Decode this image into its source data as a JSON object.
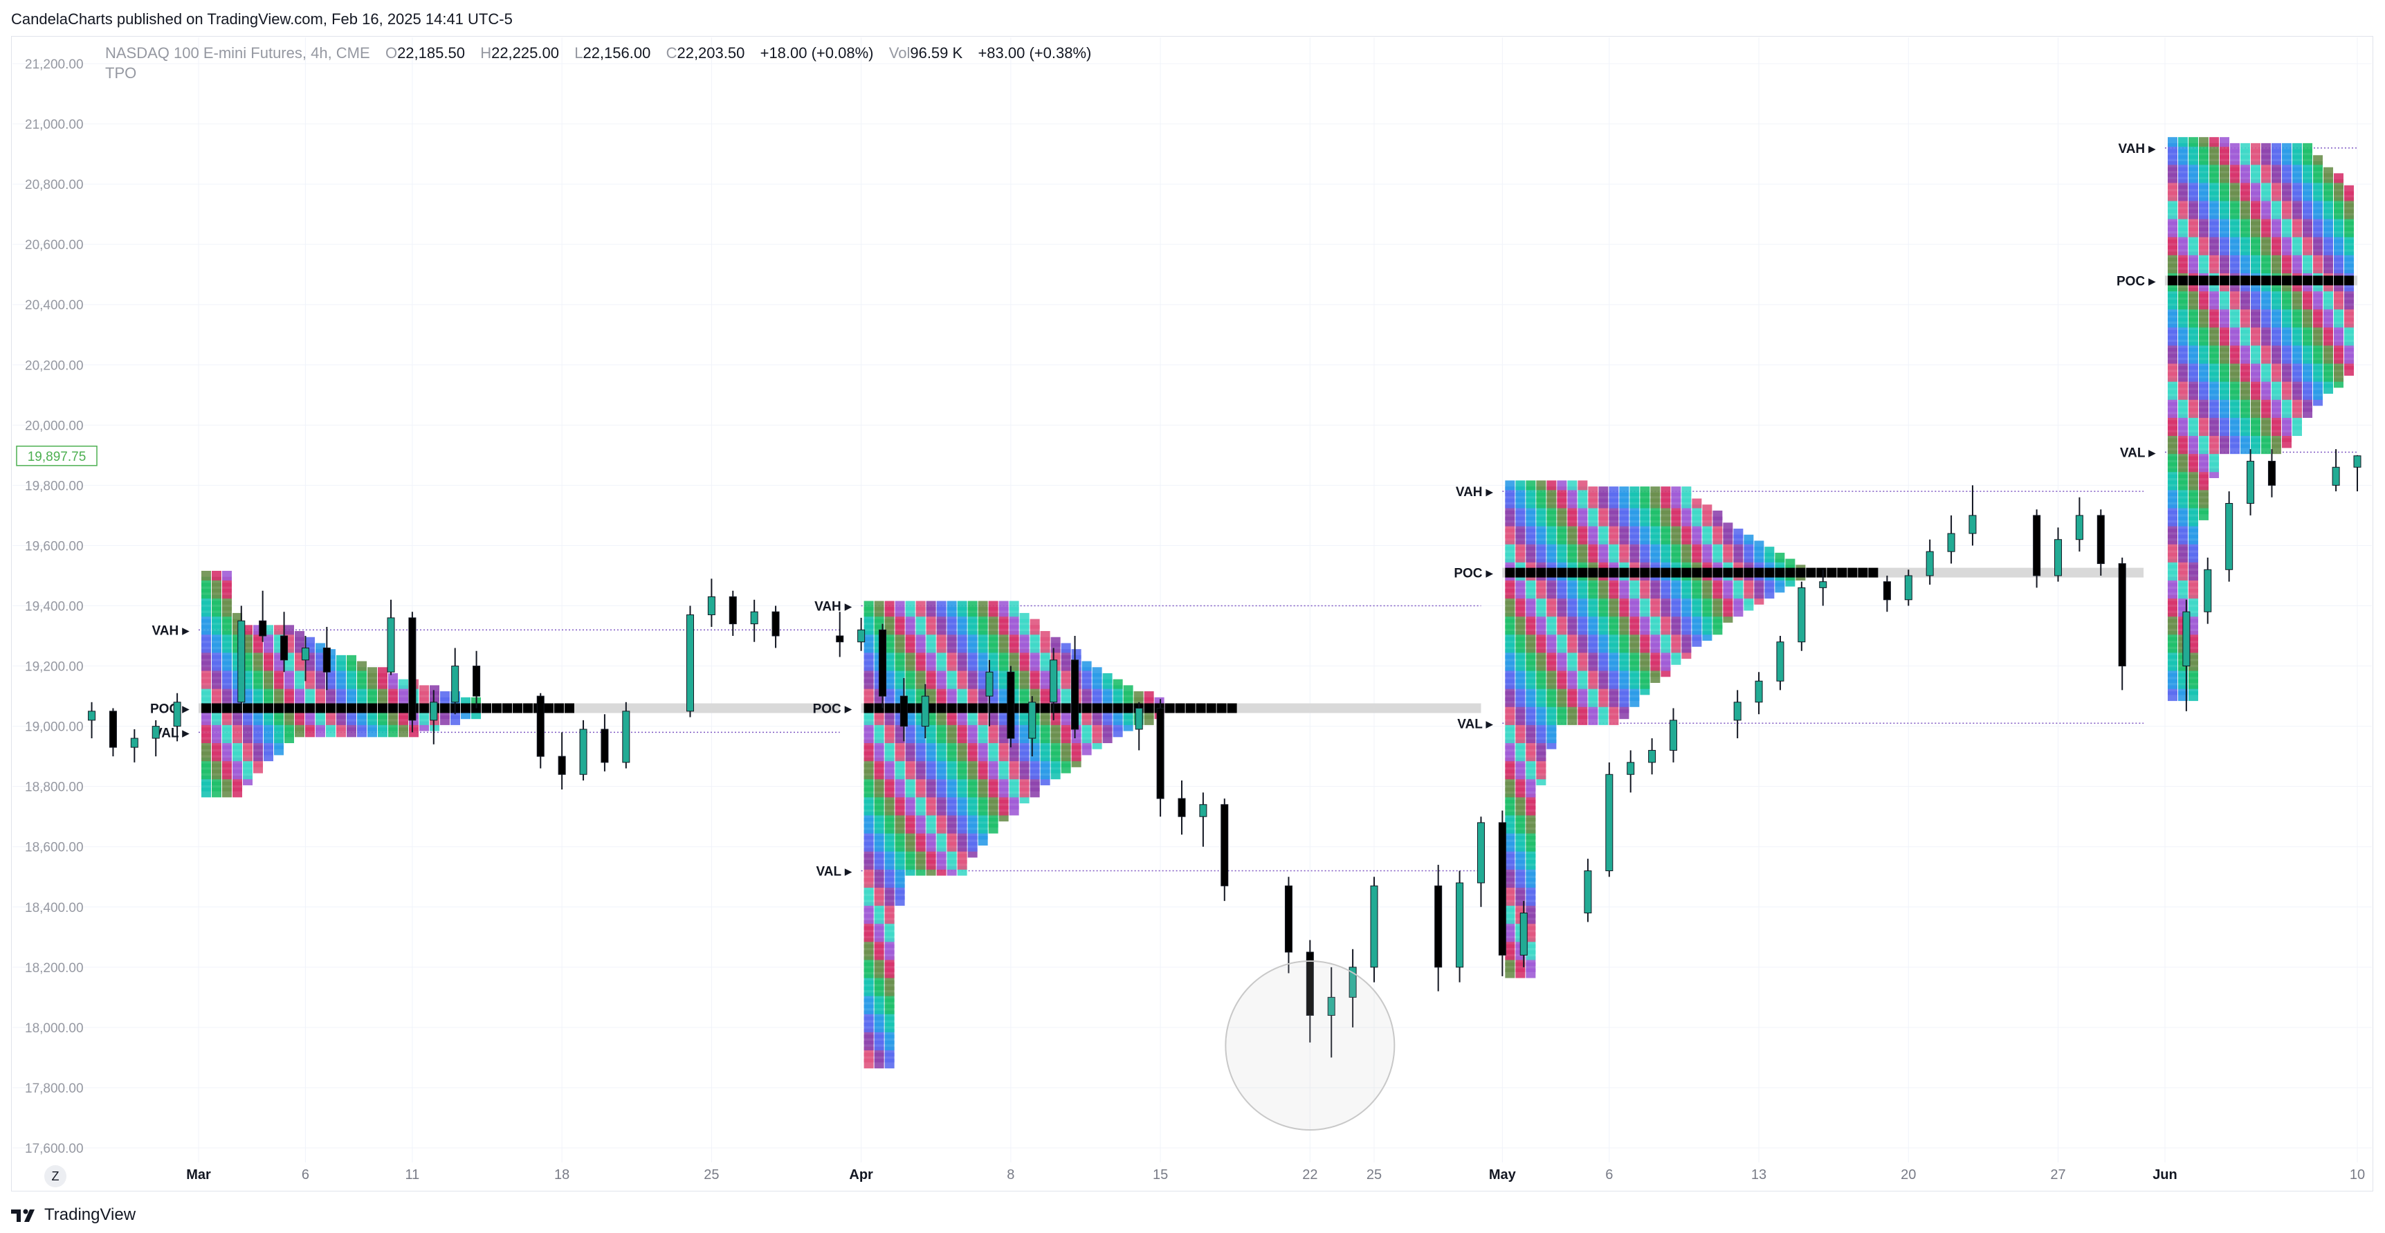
{
  "header": {
    "published": "CandelaCharts published on TradingView.com, Feb 16, 2025 14:41 UTC-5"
  },
  "legend": {
    "symbol": "NASDAQ 100 E-mini Futures, 4h, CME",
    "o_label": "O",
    "o_value": "22,185.50",
    "h_label": "H",
    "h_value": "22,225.00",
    "l_label": "L",
    "l_value": "22,156.00",
    "c_label": "C",
    "c_value": "22,203.50",
    "change": "+18.00 (+0.08%)",
    "vol_label": "Vol",
    "vol_value": "96.59 K",
    "vol_change": "+83.00 (+0.38%)",
    "indicator": "TPO"
  },
  "footer": {
    "brand": "TradingView",
    "zoom_button": "Z"
  },
  "colors": {
    "up": "#22ab94",
    "down": "#000000",
    "grid": "#f0f3fa",
    "poc_band": "#d9d9d9",
    "pink_band": "#f8d7f5",
    "price_tag": "#4caf50",
    "level_line": "#7e57c2"
  },
  "chart_data": {
    "type": "candlestick",
    "title": "",
    "y_ticks": [
      "21,200.00",
      "21,000.00",
      "20,800.00",
      "20,600.00",
      "20,400.00",
      "20,200.00",
      "20,000.00",
      "19,800.00",
      "19,600.00",
      "19,400.00",
      "19,200.00",
      "19,000.00",
      "18,800.00",
      "18,600.00",
      "18,400.00",
      "18,200.00",
      "18,000.00",
      "17,800.00",
      "17,600.00"
    ],
    "y_tick_values": [
      21200,
      21000,
      20800,
      20600,
      20400,
      20200,
      20000,
      19800,
      19600,
      19400,
      19200,
      19000,
      18800,
      18600,
      18400,
      18200,
      18000,
      17800,
      17600
    ],
    "ylim": [
      17550,
      21270
    ],
    "price_tag": "19,897.75",
    "x_ticks": [
      "Mar",
      "6",
      "11",
      "18",
      "25",
      "Apr",
      "8",
      "15",
      "22",
      "25",
      "May",
      "6",
      "13",
      "20",
      "27",
      "Jun",
      "10"
    ],
    "x_tick_dates": [
      "2025-03-01",
      "2025-03-06",
      "2025-03-11",
      "2025-03-18",
      "2025-03-25",
      "2025-04-01",
      "2025-04-08",
      "2025-04-15",
      "2025-04-22",
      "2025-04-25",
      "2025-05-01",
      "2025-05-06",
      "2025-05-13",
      "2025-05-20",
      "2025-05-27",
      "2025-06-01",
      "2025-06-10"
    ],
    "series": [
      {
        "values": [
          [
            "2025-02-24",
            19020,
            19080,
            18960,
            19050
          ],
          [
            "2025-02-25",
            19050,
            19060,
            18900,
            18930
          ],
          [
            "2025-02-26",
            18930,
            18990,
            18880,
            18960
          ],
          [
            "2025-02-27",
            18960,
            19020,
            18900,
            19000
          ],
          [
            "2025-02-28",
            19000,
            19110,
            18950,
            19080
          ],
          [
            "2025-03-03",
            19080,
            19400,
            19050,
            19350
          ],
          [
            "2025-03-04",
            19350,
            19450,
            19280,
            19300
          ],
          [
            "2025-03-05",
            19300,
            19380,
            19180,
            19220
          ],
          [
            "2025-03-06",
            19220,
            19300,
            19150,
            19260
          ],
          [
            "2025-03-07",
            19260,
            19330,
            19120,
            19180
          ],
          [
            "2025-03-10",
            19180,
            19420,
            19170,
            19360
          ],
          [
            "2025-03-11",
            19360,
            19380,
            18980,
            19020
          ],
          [
            "2025-03-12",
            19020,
            19120,
            18940,
            19080
          ],
          [
            "2025-03-13",
            19080,
            19260,
            19040,
            19200
          ],
          [
            "2025-03-14",
            19200,
            19250,
            19060,
            19100
          ],
          [
            "2025-03-17",
            19100,
            19110,
            18860,
            18900
          ],
          [
            "2025-03-18",
            18900,
            18980,
            18790,
            18840
          ],
          [
            "2025-03-19",
            18840,
            19020,
            18820,
            18990
          ],
          [
            "2025-03-20",
            18990,
            19040,
            18850,
            18880
          ],
          [
            "2025-03-21",
            18880,
            19080,
            18860,
            19050
          ],
          [
            "2025-03-24",
            19050,
            19400,
            19030,
            19370
          ],
          [
            "2025-03-25",
            19370,
            19490,
            19330,
            19430
          ],
          [
            "2025-03-26",
            19430,
            19450,
            19300,
            19340
          ],
          [
            "2025-03-27",
            19340,
            19420,
            19280,
            19380
          ],
          [
            "2025-03-28",
            19380,
            19400,
            19260,
            19300
          ],
          [
            "2025-03-31",
            19300,
            19380,
            19230,
            19280
          ],
          [
            "2025-04-01",
            19280,
            19360,
            19250,
            19320
          ],
          [
            "2025-04-02",
            19320,
            19340,
            19060,
            19100
          ],
          [
            "2025-04-03",
            19100,
            19160,
            18950,
            19000
          ],
          [
            "2025-04-04",
            19000,
            19140,
            18960,
            19100
          ],
          [
            "2025-04-07",
            19100,
            19220,
            19000,
            19180
          ],
          [
            "2025-04-08",
            19180,
            19200,
            18930,
            18960
          ],
          [
            "2025-04-09",
            18960,
            19100,
            18900,
            19080
          ],
          [
            "2025-04-10",
            19080,
            19260,
            19020,
            19220
          ],
          [
            "2025-04-11",
            19220,
            19300,
            18960,
            18990
          ],
          [
            "2025-04-14",
            18990,
            19080,
            18920,
            19060
          ],
          [
            "2025-04-15",
            19060,
            19090,
            18700,
            18760
          ],
          [
            "2025-04-16",
            18760,
            18820,
            18640,
            18700
          ],
          [
            "2025-04-17",
            18700,
            18780,
            18600,
            18740
          ],
          [
            "2025-04-18",
            18740,
            18760,
            18420,
            18470
          ],
          [
            "2025-04-21",
            18470,
            18500,
            18180,
            18250
          ],
          [
            "2025-04-22",
            18250,
            18290,
            17950,
            18040
          ],
          [
            "2025-04-23",
            18040,
            18200,
            17900,
            18100
          ],
          [
            "2025-04-24",
            18100,
            18260,
            18000,
            18200
          ],
          [
            "2025-04-25",
            18200,
            18500,
            18150,
            18470
          ],
          [
            "2025-04-28",
            18470,
            18540,
            18120,
            18200
          ],
          [
            "2025-04-29",
            18200,
            18520,
            18150,
            18480
          ],
          [
            "2025-04-30",
            18480,
            18700,
            18400,
            18680
          ],
          [
            "2025-05-01",
            18680,
            18720,
            18170,
            18240
          ],
          [
            "2025-05-02",
            18240,
            18420,
            18200,
            18380
          ],
          [
            "2025-05-05",
            18380,
            18560,
            18350,
            18520
          ],
          [
            "2025-05-06",
            18520,
            18880,
            18500,
            18840
          ],
          [
            "2025-05-07",
            18840,
            18920,
            18780,
            18880
          ],
          [
            "2025-05-08",
            18880,
            18960,
            18840,
            18920
          ],
          [
            "2025-05-09",
            18920,
            19060,
            18880,
            19020
          ],
          [
            "2025-05-12",
            19020,
            19120,
            18960,
            19080
          ],
          [
            "2025-05-13",
            19080,
            19180,
            19040,
            19150
          ],
          [
            "2025-05-14",
            19150,
            19300,
            19120,
            19280
          ],
          [
            "2025-05-15",
            19280,
            19480,
            19250,
            19460
          ],
          [
            "2025-05-16",
            19460,
            19520,
            19400,
            19480
          ],
          [
            "2025-05-19",
            19480,
            19500,
            19380,
            19420
          ],
          [
            "2025-05-20",
            19420,
            19520,
            19400,
            19500
          ],
          [
            "2025-05-21",
            19500,
            19620,
            19470,
            19580
          ],
          [
            "2025-05-22",
            19580,
            19700,
            19540,
            19640
          ],
          [
            "2025-05-23",
            19640,
            19800,
            19600,
            19700
          ],
          [
            "2025-05-26",
            19700,
            19720,
            19460,
            19500
          ],
          [
            "2025-05-27",
            19500,
            19660,
            19480,
            19620
          ],
          [
            "2025-05-28",
            19620,
            19760,
            19580,
            19700
          ],
          [
            "2025-05-29",
            19700,
            19720,
            19500,
            19540
          ],
          [
            "2025-05-30",
            19540,
            19560,
            19120,
            19200
          ],
          [
            "2025-06-02",
            19200,
            19420,
            19050,
            19380
          ],
          [
            "2025-06-03",
            19380,
            19560,
            19340,
            19520
          ],
          [
            "2025-06-04",
            19520,
            19780,
            19480,
            19740
          ],
          [
            "2025-06-05",
            19740,
            19920,
            19700,
            19880
          ],
          [
            "2025-06-06",
            19880,
            19920,
            19760,
            19800
          ],
          [
            "2025-06-09",
            19800,
            19920,
            19780,
            19860
          ],
          [
            "2025-06-10",
            19860,
            19900,
            19780,
            19898
          ]
        ]
      }
    ],
    "tpo_profiles": [
      {
        "start": "2025-03-01",
        "end": "2025-03-31",
        "vah": 19320,
        "poc": 19060,
        "val": 18980,
        "high": 19500,
        "low": 18780
      },
      {
        "start": "2025-04-01",
        "end": "2025-04-30",
        "vah": 19400,
        "poc": 19060,
        "val": 18520,
        "high": 19400,
        "low": 17880
      },
      {
        "start": "2025-05-01",
        "end": "2025-05-31",
        "vah": 19780,
        "poc": 19510,
        "val": 19010,
        "high": 19800,
        "low": 18180
      },
      {
        "start": "2025-06-01",
        "end": "2025-06-10",
        "vah": 20920,
        "poc": 20480,
        "val": 19910,
        "high": 20940,
        "low": 19100
      }
    ],
    "level_labels": {
      "vah": "VAH",
      "poc": "POC",
      "val": "VAL"
    },
    "grid": true,
    "legend": "top-left"
  }
}
